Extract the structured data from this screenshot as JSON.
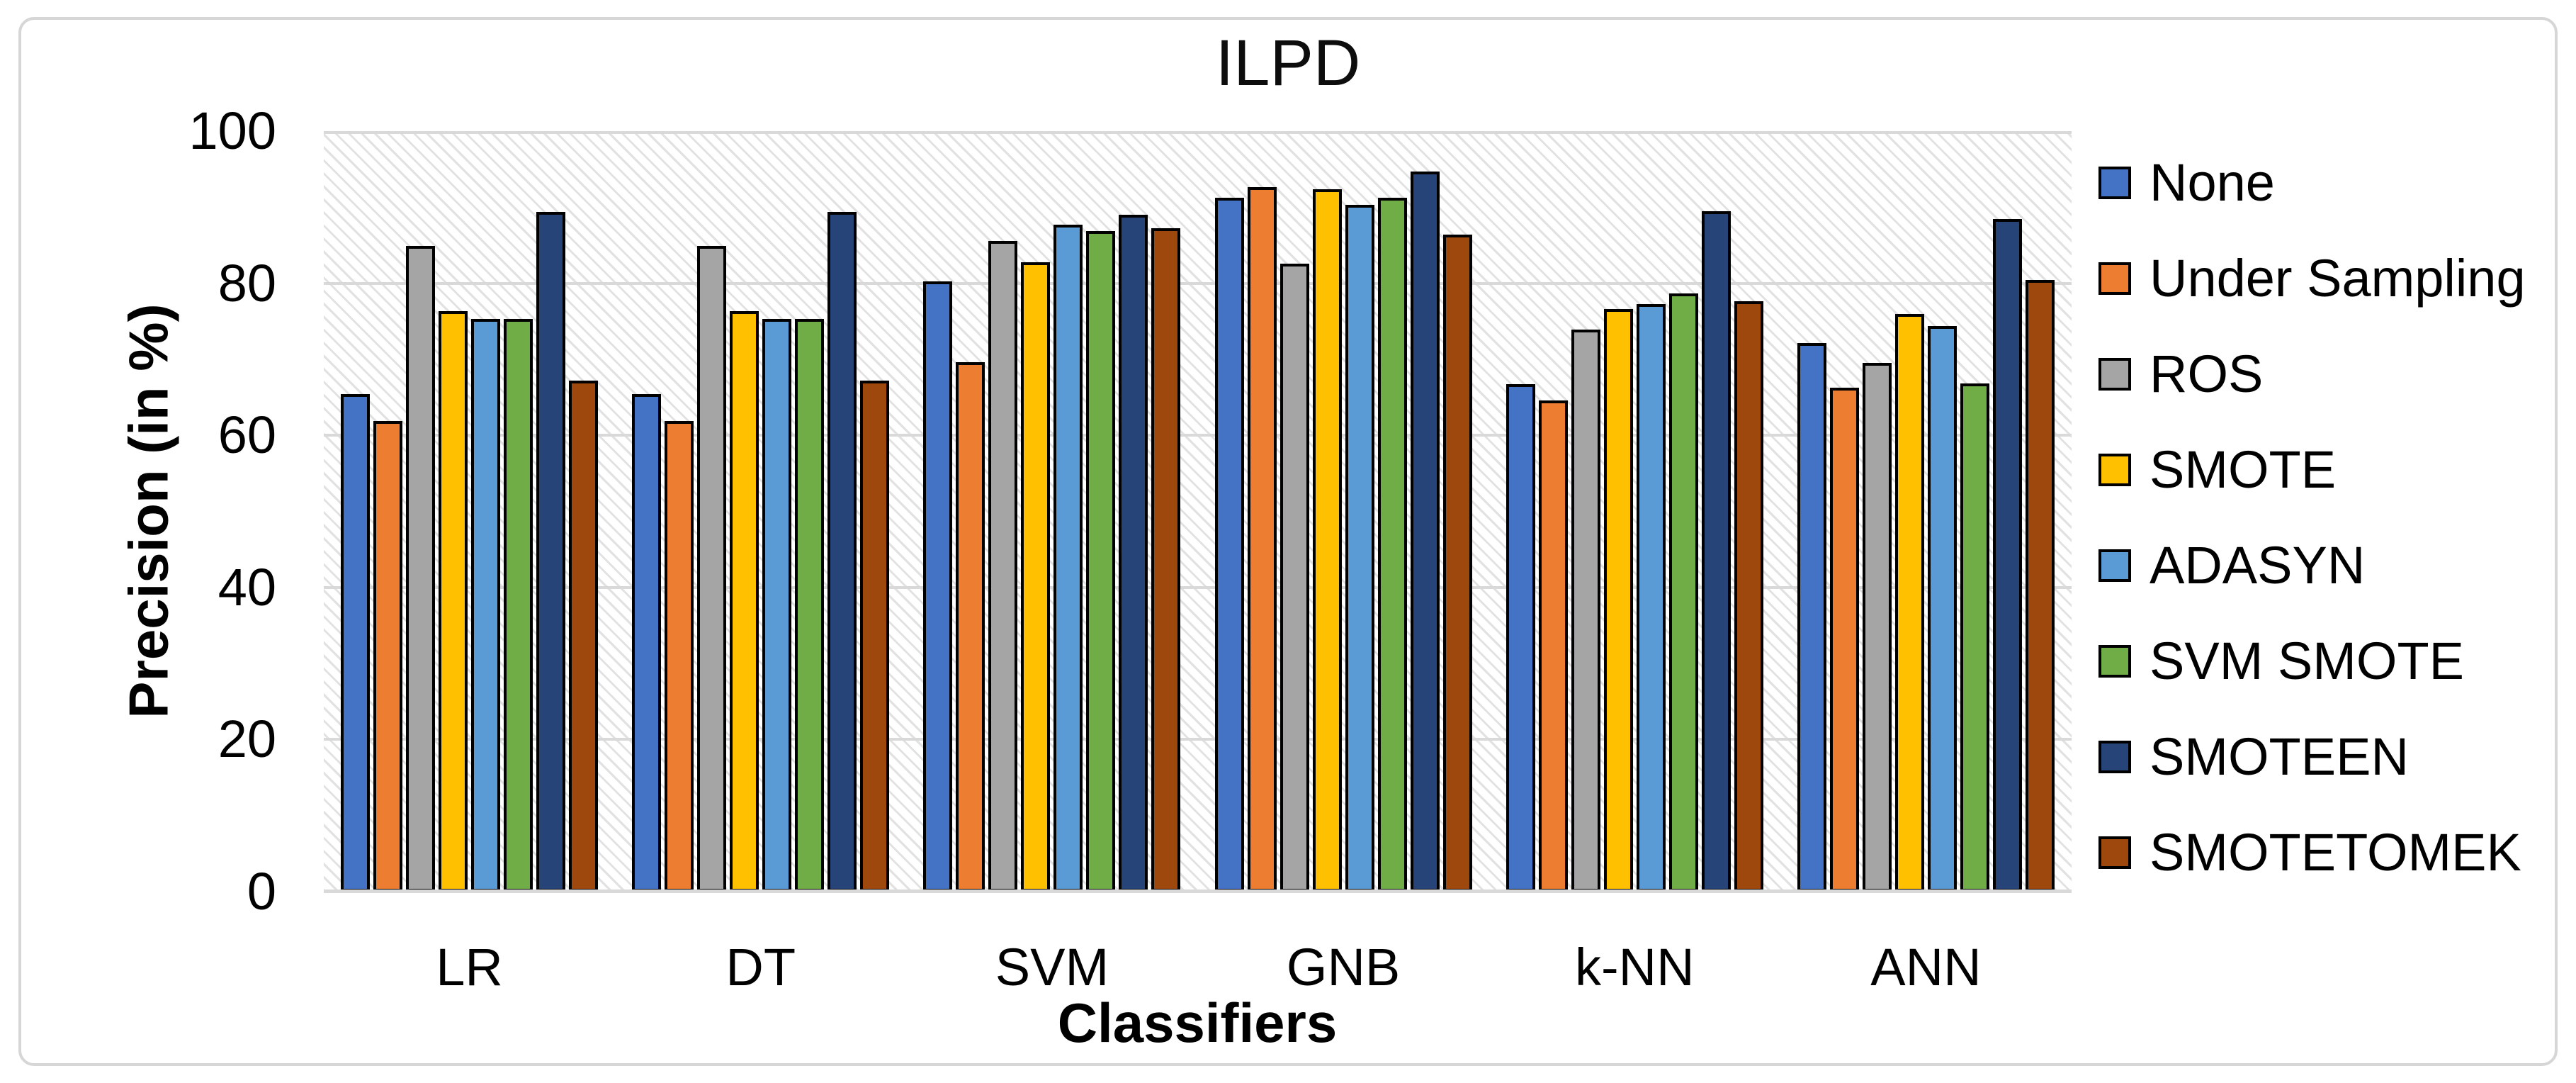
{
  "chart_data": {
    "type": "bar",
    "title": "ILPD",
    "xlabel": "Classifiers",
    "ylabel": "Precision (in %)",
    "ylim": [
      0,
      100
    ],
    "y_ticks": [
      0,
      20,
      40,
      60,
      80,
      100
    ],
    "grid": true,
    "legend_position": "right",
    "plot_background": "light-downward-diagonal-hatch",
    "gridline_color": "#d9d9d9",
    "bar_outline_color": "#000000",
    "categories": [
      "LR",
      "DT",
      "SVM",
      "GNB",
      "k-NN",
      "ANN"
    ],
    "series": [
      {
        "name": "None",
        "color": "#4472C4",
        "values": [
          65.4,
          65.4,
          80.2,
          91.2,
          66.7,
          72.1
        ]
      },
      {
        "name": "Under Sampling",
        "color": "#ED7D31",
        "values": [
          61.9,
          61.9,
          69.6,
          92.6,
          64.6,
          66.3
        ]
      },
      {
        "name": "ROS",
        "color": "#A5A5A5",
        "values": [
          84.9,
          84.9,
          85.6,
          82.6,
          73.9,
          69.5
        ]
      },
      {
        "name": "SMOTE",
        "color": "#FFC000",
        "values": [
          76.3,
          76.3,
          82.8,
          92.4,
          76.6,
          76.0
        ]
      },
      {
        "name": "ADASYN",
        "color": "#5B9BD5",
        "values": [
          75.3,
          75.3,
          87.7,
          90.3,
          77.3,
          74.4
        ]
      },
      {
        "name": "SVM SMOTE",
        "color": "#70AD47",
        "values": [
          75.3,
          75.3,
          86.9,
          91.2,
          78.7,
          66.8
        ]
      },
      {
        "name": "SMOTEEN",
        "color": "#264478",
        "values": [
          89.4,
          89.4,
          89.0,
          94.7,
          89.5,
          88.4
        ]
      },
      {
        "name": "SMOTETOMEK",
        "color": "#9E480E",
        "values": [
          67.2,
          67.2,
          87.2,
          86.4,
          77.6,
          80.4
        ]
      }
    ]
  }
}
